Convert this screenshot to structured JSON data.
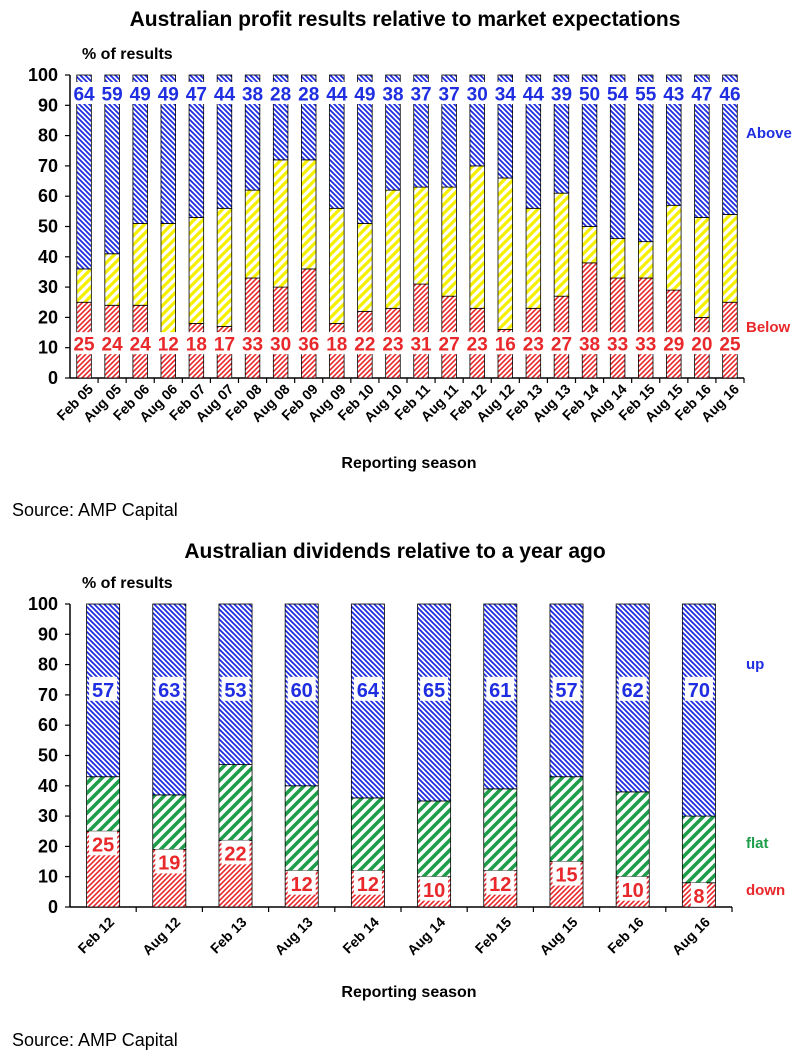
{
  "chart_data": [
    {
      "type": "bar",
      "stacked": true,
      "title": "Australian profit results relative to market expectations",
      "unit_label": "% of results",
      "xlabel": "Reporting season",
      "ylim": [
        0,
        100
      ],
      "yticks": [
        0,
        10,
        20,
        30,
        40,
        50,
        60,
        70,
        80,
        90,
        100
      ],
      "categories": [
        "Feb 05",
        "Aug 05",
        "Feb 06",
        "Aug 06",
        "Feb 07",
        "Aug 07",
        "Feb 08",
        "Aug 08",
        "Feb 09",
        "Aug 09",
        "Feb 10",
        "Aug 10",
        "Feb 11",
        "Aug 11",
        "Feb 12",
        "Aug 12",
        "Feb 13",
        "Aug 13",
        "Feb 14",
        "Aug 14",
        "Feb 15",
        "Aug 15",
        "Feb 16",
        "Aug 16"
      ],
      "series": [
        {
          "name": "Below",
          "color": "#e8282b",
          "values": [
            25,
            24,
            24,
            12,
            18,
            17,
            33,
            30,
            36,
            18,
            22,
            23,
            31,
            27,
            23,
            16,
            23,
            27,
            38,
            33,
            33,
            29,
            20,
            25
          ]
        },
        {
          "color": "#ffff00",
          "values": [
            11,
            17,
            27,
            39,
            35,
            39,
            29,
            42,
            36,
            38,
            29,
            39,
            32,
            36,
            47,
            50,
            33,
            34,
            12,
            13,
            12,
            28,
            33,
            29
          ]
        },
        {
          "name": "Above",
          "color": "#1f2ee0",
          "values": [
            64,
            59,
            49,
            49,
            47,
            44,
            38,
            28,
            28,
            44,
            49,
            38,
            37,
            37,
            30,
            34,
            44,
            39,
            50,
            54,
            55,
            43,
            47,
            46
          ]
        }
      ],
      "grid": false,
      "source": "Source: AMP Capital"
    },
    {
      "type": "bar",
      "stacked": true,
      "title": "Australian dividends relative to a year ago",
      "unit_label": "% of results",
      "xlabel": "Reporting season",
      "ylim": [
        0,
        100
      ],
      "yticks": [
        0,
        10,
        20,
        30,
        40,
        50,
        60,
        70,
        80,
        90,
        100
      ],
      "categories": [
        "Feb 12",
        "Aug 12",
        "Feb 13",
        "Aug 13",
        "Feb 14",
        "Aug 14",
        "Feb 15",
        "Aug 15",
        "Feb 16",
        "Aug 16"
      ],
      "series": [
        {
          "name": "down",
          "color": "#e8282b",
          "values": [
            25,
            19,
            22,
            12,
            12,
            10,
            12,
            15,
            10,
            8
          ]
        },
        {
          "name": "flat",
          "color": "#1e9e4a",
          "values": [
            18,
            18,
            25,
            28,
            24,
            25,
            27,
            28,
            28,
            22
          ]
        },
        {
          "name": "up",
          "color": "#1f2ee0",
          "values": [
            57,
            63,
            53,
            60,
            64,
            65,
            61,
            57,
            62,
            70
          ]
        }
      ],
      "grid": false,
      "source": "Source: AMP Capital"
    }
  ]
}
